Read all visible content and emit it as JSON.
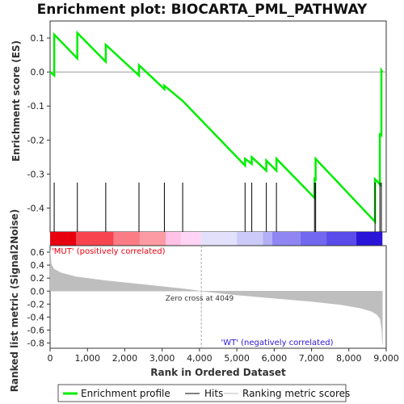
{
  "chart_data": {
    "type": "line",
    "title": "Enrichment plot: BIOCARTA_PML_PATHWAY",
    "es_panel": {
      "ylabel": "Enrichment score (ES)",
      "ylim": [
        -0.47,
        0.15
      ],
      "yticks": [
        "0.1",
        "0.0",
        "-0.1",
        "-0.2",
        "-0.3",
        "-0.4"
      ],
      "ytick_values": [
        0.1,
        0.0,
        -0.1,
        -0.2,
        -0.3,
        -0.4
      ],
      "series": [
        {
          "color": "#00ee00",
          "x": [
            0,
            110,
            110,
            730,
            730,
            1490,
            1490,
            2380,
            2380,
            3060,
            3060,
            3550,
            3550,
            5220,
            5220,
            5400,
            5400,
            5790,
            5790,
            6060,
            6060,
            7080,
            7080,
            7110,
            7110,
            8700,
            8700,
            8830,
            8830,
            8870,
            8870,
            8898
          ],
          "y": [
            0.0,
            -0.01,
            0.11,
            0.04,
            0.115,
            0.03,
            0.08,
            -0.01,
            0.02,
            -0.05,
            -0.04,
            -0.085,
            -0.085,
            -0.275,
            -0.255,
            -0.27,
            -0.25,
            -0.29,
            -0.26,
            -0.29,
            -0.255,
            -0.37,
            -0.31,
            -0.32,
            -0.255,
            -0.44,
            -0.315,
            -0.33,
            -0.18,
            -0.19,
            0.005,
            0.0
          ]
        }
      ]
    },
    "hits": [
      110,
      730,
      1490,
      2380,
      3060,
      3550,
      5220,
      5400,
      5790,
      6060,
      7080,
      7110,
      8700,
      8830,
      8870
    ],
    "metric_panel": {
      "ylabel": "Ranked list metric (Signal2Noise)",
      "xlabel": "Rank in Ordered Dataset",
      "ylim": [
        -0.88,
        0.7
      ],
      "xlim": [
        0,
        9000
      ],
      "yticks": [
        "0.6",
        "0.4",
        "0.2",
        "0.0",
        "-0.2",
        "-0.4",
        "-0.6",
        "-0.8"
      ],
      "ytick_values": [
        0.6,
        0.4,
        0.2,
        0.0,
        -0.2,
        -0.4,
        -0.6,
        -0.8
      ],
      "xticks": [
        "0",
        "1,000",
        "2,000",
        "3,000",
        "4,000",
        "5,000",
        "6,000",
        "7,000",
        "8,000",
        "9,000"
      ],
      "xtick_values": [
        0,
        1000,
        2000,
        3000,
        4000,
        5000,
        6000,
        7000,
        8000,
        9000
      ],
      "n_genes": 8898,
      "zero_cross": 4049,
      "zero_cross_label": "Zero cross at 4049",
      "pos_label": "'MUT' (positively correlated)",
      "neg_label": "'WT' (negatively correlated)",
      "curve": {
        "x": [
          0,
          30,
          100,
          300,
          700,
          1500,
          2500,
          3500,
          4049,
          5000,
          6000,
          7000,
          7800,
          8300,
          8600,
          8750,
          8840,
          8880,
          8898
        ],
        "y": [
          0.62,
          0.42,
          0.34,
          0.28,
          0.22,
          0.16,
          0.1,
          0.04,
          0.0,
          -0.06,
          -0.11,
          -0.16,
          -0.21,
          -0.26,
          -0.31,
          -0.36,
          -0.43,
          -0.6,
          -0.82
        ]
      },
      "fill_color": "#bebebe"
    },
    "colorbar": {
      "segments": [
        {
          "end": 700,
          "color": "#e8000f"
        },
        {
          "end": 1700,
          "color": "#f6454f"
        },
        {
          "end": 2400,
          "color": "#fa7d86"
        },
        {
          "end": 3100,
          "color": "#fc9ba3"
        },
        {
          "end": 3500,
          "color": "#ffc1e5"
        },
        {
          "end": 4049,
          "color": "#ffd4f4"
        },
        {
          "end": 5000,
          "color": "#e2e0fa"
        },
        {
          "end": 5700,
          "color": "#cccaf8"
        },
        {
          "end": 5950,
          "color": "#b3aff5"
        },
        {
          "end": 6700,
          "color": "#8f86f3"
        },
        {
          "end": 7400,
          "color": "#7268ef"
        },
        {
          "end": 8200,
          "color": "#5a4cea"
        },
        {
          "end": 8898,
          "color": "#2a14d8"
        }
      ]
    },
    "legend": {
      "placement": "bottom",
      "items": [
        {
          "label": "Enrichment profile",
          "color": "#00ee00",
          "kind": "line-thick"
        },
        {
          "label": "Hits",
          "color": "#000000",
          "kind": "line"
        },
        {
          "label": "Ranking metric scores",
          "color": "#bebebe",
          "kind": "line"
        }
      ]
    }
  }
}
